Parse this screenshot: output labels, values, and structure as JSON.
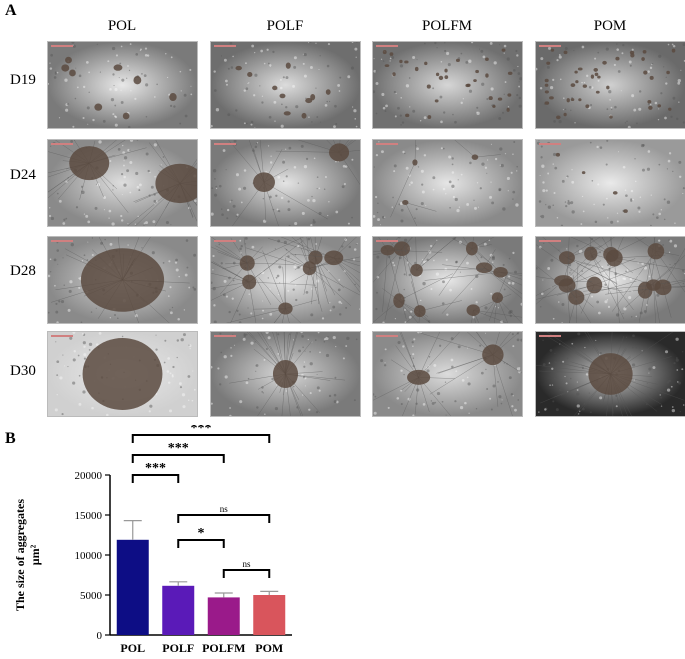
{
  "panel_a": {
    "letter": "A",
    "columns": [
      "POL",
      "POLF",
      "POLFM",
      "POM"
    ],
    "rows": [
      "D19",
      "D24",
      "D28",
      "D30"
    ]
  },
  "panel_b": {
    "letter": "B"
  },
  "chart_data": {
    "type": "bar",
    "categories": [
      "POL",
      "POLF",
      "POLFM",
      "POM"
    ],
    "values": [
      11900,
      6150,
      4700,
      5000
    ],
    "errors": [
      2400,
      500,
      550,
      450
    ],
    "colors": [
      "#0d0d85",
      "#5a1ab8",
      "#9a1a8a",
      "#d9555c"
    ],
    "ylabel": "The size of aggregates μm²",
    "ylabel_lines": [
      "The size of aggregates",
      "μm²"
    ],
    "ylim": [
      0,
      20000
    ],
    "yticks": [
      0,
      5000,
      10000,
      15000,
      20000
    ],
    "significance": [
      {
        "from": "POL",
        "to": "POM",
        "label": "***"
      },
      {
        "from": "POL",
        "to": "POLFM",
        "label": "***"
      },
      {
        "from": "POL",
        "to": "POLF",
        "label": "***"
      },
      {
        "from": "POLF",
        "to": "POM",
        "label": "ns"
      },
      {
        "from": "POLF",
        "to": "POLFM",
        "label": "*"
      },
      {
        "from": "POLFM",
        "to": "POM",
        "label": "ns"
      }
    ]
  }
}
